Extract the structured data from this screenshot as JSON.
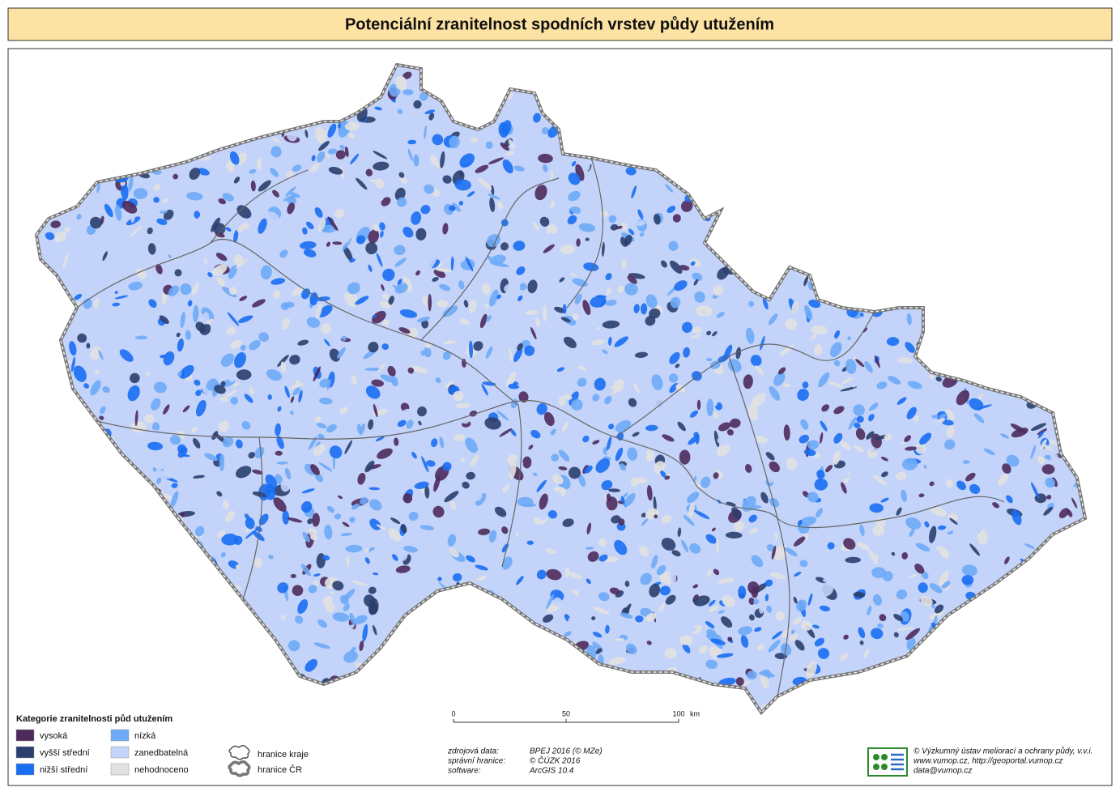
{
  "header": {
    "title": "Potenciální zranitelnost spodních vrstev půdy utužením"
  },
  "legend": {
    "title": "Kategorie zranitelnosti půd utužením",
    "items": [
      {
        "label": "vysoká",
        "color": "#4e2a5c"
      },
      {
        "label": "vyšší střední",
        "color": "#2b3f6e"
      },
      {
        "label": "nižší střední",
        "color": "#1a6ef2"
      },
      {
        "label": "nízká",
        "color": "#6eaaf6"
      },
      {
        "label": "zanedbatelná",
        "color": "#c3d3f9"
      },
      {
        "label": "nehodnoceno",
        "color": "#e1e1e1"
      }
    ],
    "boundaries": [
      "hranice kraje",
      "hranice ČR"
    ]
  },
  "scale": {
    "ticks": [
      0,
      50,
      100
    ],
    "unit": "km"
  },
  "sources": [
    [
      "zdrojová data:",
      "BPEJ 2016 (© MZe)"
    ],
    [
      "správní hranice:",
      "© ČÚZK 2016"
    ],
    [
      "software:",
      "ArcGIS 10.4"
    ]
  ],
  "credits": [
    "© Výzkumný ústav meliorací a ochrany půdy, v.v.i.",
    "www.vumop.cz, http://geoportal.vumop.cz",
    "data@vumop.cz"
  ]
}
